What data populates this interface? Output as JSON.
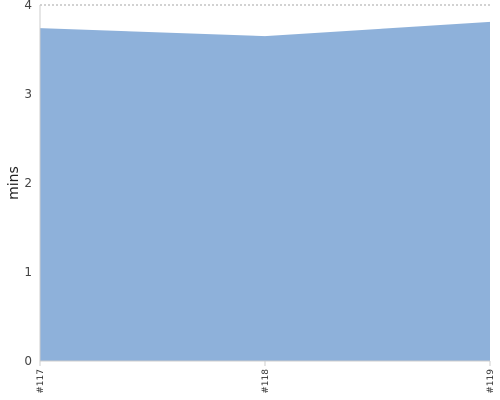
{
  "chart_data": {
    "type": "area",
    "title": "",
    "xlabel": "",
    "ylabel": "mins",
    "categories": [
      "#117",
      "#118",
      "#119"
    ],
    "values": [
      3.74,
      3.65,
      3.81
    ],
    "ylim": [
      0,
      4
    ],
    "yticks": [
      "0",
      "1",
      "2",
      "3",
      "4"
    ],
    "grid": true,
    "legend": "none",
    "colors": {
      "fill": "#8eb1da",
      "grid": "#888888",
      "axis": "#cccccc"
    }
  }
}
